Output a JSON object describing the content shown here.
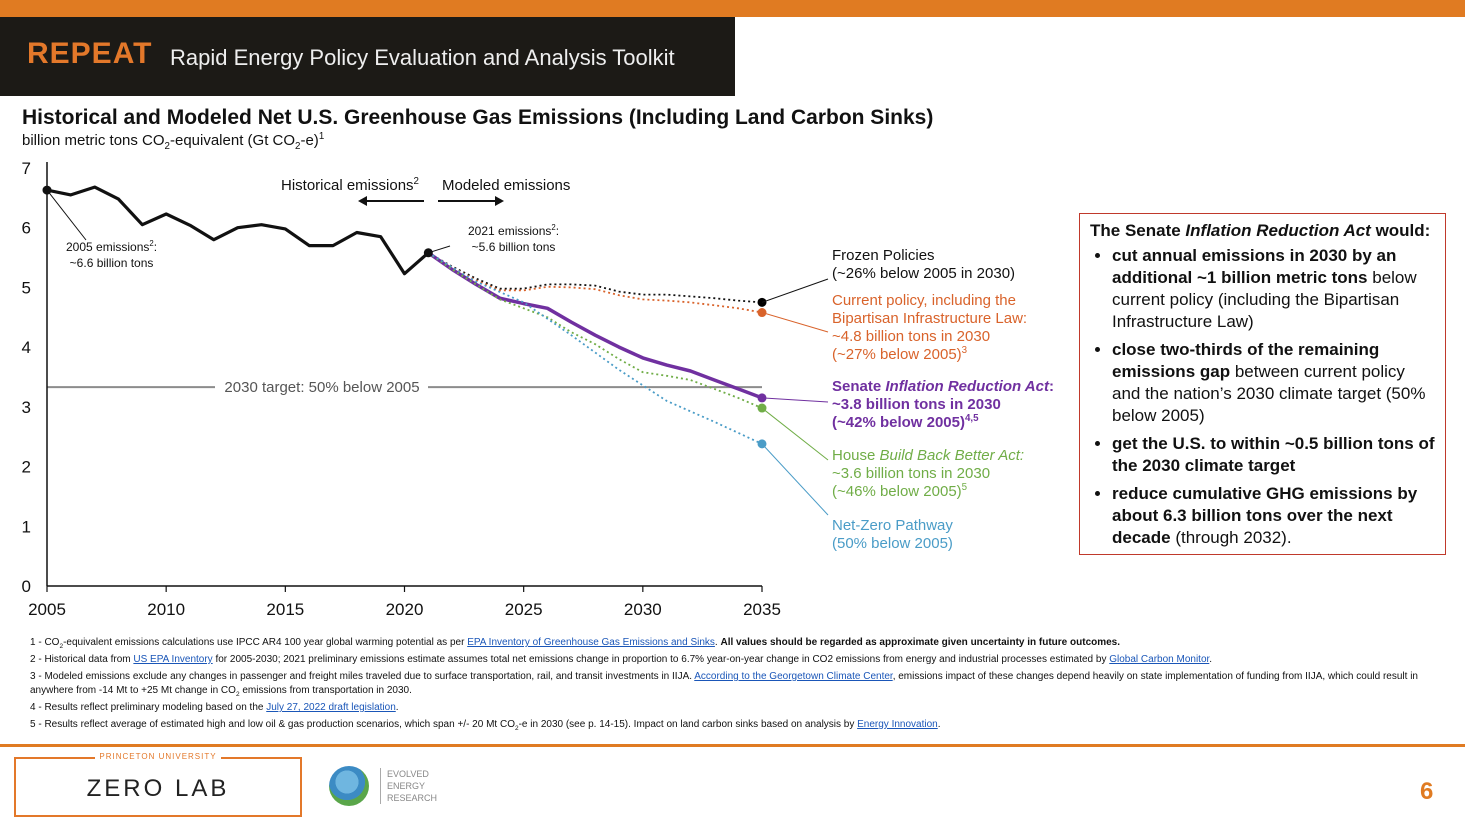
{
  "header": {
    "brand": "REPEAT",
    "tagline": "Rapid Energy Policy Evaluation and Analysis Toolkit"
  },
  "chart_data": {
    "type": "line",
    "title": "Historical and Modeled Net U.S. Greenhouse Gas Emissions (Including Land Carbon Sinks)",
    "ylabel_main": "billion metric tons CO",
    "ylabel_sub": "2",
    "ylabel_mid": "-equivalent (Gt CO",
    "ylabel_sub2": "2",
    "ylabel_end": "-e)",
    "ylabel_sup": "1",
    "xlim": [
      2005,
      2035
    ],
    "ylim": [
      0,
      7
    ],
    "xticks": [
      2005,
      2010,
      2015,
      2020,
      2025,
      2030,
      2035
    ],
    "yticks": [
      0,
      1,
      2,
      3,
      4,
      5,
      6,
      7
    ],
    "target": {
      "value": 3.33,
      "label": "2030 target: 50% below 2005",
      "color": "#8c8c8c"
    },
    "historical": {
      "color": "#111111",
      "x": [
        2005,
        2006,
        2007,
        2008,
        2009,
        2010,
        2011,
        2012,
        2013,
        2014,
        2015,
        2016,
        2017,
        2018,
        2019,
        2020,
        2021
      ],
      "y": [
        6.63,
        6.55,
        6.68,
        6.48,
        6.05,
        6.23,
        6.04,
        5.8,
        6.0,
        6.05,
        5.98,
        5.7,
        5.7,
        5.92,
        5.85,
        5.23,
        5.58
      ]
    },
    "series": [
      {
        "name": "Frozen Policies",
        "color": "#111111",
        "style": "dotted",
        "x": [
          2021,
          2022,
          2023,
          2024,
          2025,
          2026,
          2027,
          2028,
          2029,
          2030,
          2031,
          2032,
          2033,
          2034,
          2035
        ],
        "y": [
          5.58,
          5.35,
          5.15,
          4.98,
          4.98,
          5.05,
          5.05,
          5.03,
          4.93,
          4.88,
          4.88,
          4.85,
          4.82,
          4.78,
          4.75
        ]
      },
      {
        "name": "Current policy, including the Bipartisan Infrastructure Law",
        "color": "#d9632b",
        "style": "dotted",
        "x": [
          2021,
          2022,
          2023,
          2024,
          2025,
          2026,
          2027,
          2028,
          2029,
          2030,
          2031,
          2032,
          2033,
          2034,
          2035
        ],
        "y": [
          5.58,
          5.34,
          5.12,
          4.95,
          4.95,
          5.01,
          5.0,
          4.97,
          4.87,
          4.8,
          4.78,
          4.75,
          4.7,
          4.65,
          4.58
        ]
      },
      {
        "name": "Senate Inflation Reduction Act",
        "color": "#7030a0",
        "style": "solid",
        "x": [
          2021,
          2022,
          2023,
          2024,
          2025,
          2026,
          2027,
          2028,
          2029,
          2030,
          2031,
          2032,
          2033,
          2034,
          2035
        ],
        "y": [
          5.58,
          5.3,
          5.05,
          4.82,
          4.73,
          4.65,
          4.42,
          4.2,
          4.0,
          3.82,
          3.7,
          3.6,
          3.45,
          3.3,
          3.15
        ]
      },
      {
        "name": "House Build Back Better Act",
        "color": "#70ad47",
        "style": "dotted",
        "x": [
          2021,
          2022,
          2023,
          2024,
          2025,
          2026,
          2027,
          2028,
          2029,
          2030,
          2031,
          2032,
          2033,
          2034,
          2035
        ],
        "y": [
          5.58,
          5.3,
          5.05,
          4.8,
          4.65,
          4.5,
          4.25,
          4.05,
          3.8,
          3.58,
          3.52,
          3.45,
          3.3,
          3.15,
          2.98
        ]
      },
      {
        "name": "Net-Zero Pathway",
        "color": "#4a9cc7",
        "style": "dotted",
        "x": [
          2021,
          2023,
          2025,
          2027,
          2029,
          2031,
          2033,
          2035
        ],
        "y": [
          5.58,
          5.1,
          4.75,
          4.2,
          3.62,
          3.1,
          2.75,
          2.38
        ]
      }
    ],
    "endpoints": [
      {
        "y": 4.75,
        "color": "#000000"
      },
      {
        "y": 4.58,
        "color": "#d9632b"
      },
      {
        "y": 3.15,
        "color": "#7030a0"
      },
      {
        "y": 2.98,
        "color": "#70ad47"
      },
      {
        "y": 2.38,
        "color": "#4a9cc7"
      }
    ],
    "annotations": {
      "historical": "Historical emissions",
      "historical_sup": "2",
      "modeled": "Modeled emissions",
      "e2005_line1": "2005 emissions",
      "e2005_sup": "2",
      "e2005_colon": ":",
      "e2005_line2": "~6.6 billion tons",
      "e2021_line1": "2021 emissions",
      "e2021_sup": "2",
      "e2021_colon": ":",
      "e2021_line2": "~5.6 billion tons",
      "frozen_1": "Frozen Policies",
      "frozen_2": "(~26% below 2005 in 2030)",
      "current_1": "Current policy, including the",
      "current_2": "Bipartisan Infrastructure Law:",
      "current_3": "~4.8 billion tons in 2030",
      "current_4": "(~27% below 2005)",
      "current_sup": "3",
      "ira_1a": "Senate ",
      "ira_1b": "Inflation Reduction Act",
      "ira_1c": ":",
      "ira_2": "~3.8 billion tons in 2030",
      "ira_3": "(~42% below 2005)",
      "ira_sup": "4,5",
      "bbb_1a": "House ",
      "bbb_1b": "Build Back Better Act:",
      "bbb_2": "~3.6 billion tons in 2030",
      "bbb_3": "(~46% below 2005)",
      "bbb_sup": "5",
      "nz_1": "Net-Zero Pathway",
      "nz_2": "(50% below 2005)"
    }
  },
  "box": {
    "heading_a": "The Senate ",
    "heading_b": "Inflation Reduction Act",
    "heading_c": " would:",
    "b1_bold": "cut annual emissions in 2030 by an additional ~1 billion metric tons",
    "b1_rest": " below current policy (including the Bipartisan Infrastructure Law)",
    "b2_bold": "close two-thirds of the remaining emissions gap",
    "b2_rest": " between current policy and the nation’s 2030 climate target (50% below 2005)",
    "b3_bold": "get the U.S. to within ~0.5 billion tons of the 2030 climate target",
    "b4_bold": "reduce cumulative GHG emissions by about 6.3 billion tons over the next decade",
    "b4_rest": " (through 2032)."
  },
  "notes": {
    "n1_a": "1 - CO",
    "n1_sub": "2",
    "n1_b": "-equivalent emissions calculations use IPCC AR4 100 year global warming potential as per ",
    "n1_link": "EPA Inventory of Greenhouse Gas Emissions and Sinks",
    "n1_c": ".  ",
    "n1_bold": "All values should be regarded as approximate given uncertainty in future outcomes.",
    "n2_a": "2 - Historical data from ",
    "n2_link1": "US EPA Inventory",
    "n2_b": " for 2005-2030; 2021 preliminary emissions estimate assumes total net emissions change in proportion to 6.7% year-on-year change in CO2 emissions from energy and industrial processes estimated by ",
    "n2_link2": "Global Carbon Monitor",
    "n2_c": ".",
    "n3_a": "3 - Modeled emissions exclude any changes in passenger and freight miles traveled due to surface transportation, rail, and transit investments in IIJA. ",
    "n3_link": "According to the Georgetown Climate Center",
    "n3_b": ", emissions impact of these changes depend heavily on state implementation of funding from IIJA, which could result in anywhere from -14 Mt to +25 Mt change in CO",
    "n3_sub": "2",
    "n3_c": " emissions from transportation in 2030.",
    "n4_a": "4 - Results reflect preliminary modeling based on the ",
    "n4_link": "July 27, 2022 draft legislation",
    "n4_b": ".",
    "n5_a": "5 - Results reflect average of estimated high and low oil & gas production scenarios, which span +/- 20 Mt CO",
    "n5_sub": "2",
    "n5_b": "-e in 2030 (see p. 14-15).  Impact on land carbon sinks based on analysis by ",
    "n5_link": "Energy Innovation",
    "n5_c": "."
  },
  "footer": {
    "university": "PRINCETON UNIVERSITY",
    "lab": "ZERO LAB",
    "eer_1": "EVOLVED",
    "eer_2": "ENERGY",
    "eer_3": "RESEARCH",
    "page": "6"
  }
}
